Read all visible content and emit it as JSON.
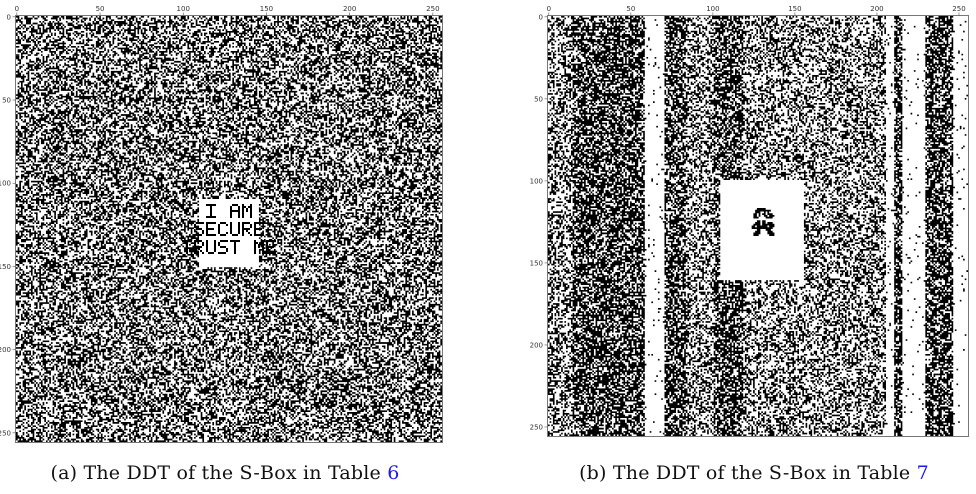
{
  "figure": {
    "panels": [
      {
        "caption_prefix": "(a) The DDT of the S-Box in Table ",
        "caption_ref": "6",
        "embedded_text": [
          "I AM",
          "SECURE",
          "TRUST ME"
        ]
      },
      {
        "caption_prefix": "(b) The DDT of the S-Box in Table ",
        "caption_ref": "7",
        "embedded_image": "mario-sprite"
      }
    ]
  },
  "chart_data": [
    {
      "type": "heatmap",
      "title": "",
      "xlabel": "",
      "ylabel": "",
      "xlim": [
        0,
        255
      ],
      "ylim": [
        0,
        255
      ],
      "x_ticks": [
        0,
        50,
        100,
        150,
        200,
        250
      ],
      "y_ticks": [
        0,
        50,
        100,
        150,
        200,
        250
      ],
      "y_inverted": true,
      "colors": {
        "nonzero": "#000000",
        "zero": "#ffffff"
      },
      "pattern": "uniform-random"
    },
    {
      "type": "heatmap",
      "title": "",
      "xlabel": "",
      "ylabel": "",
      "xlim": [
        0,
        255
      ],
      "ylim": [
        0,
        255
      ],
      "x_ticks": [
        0,
        50,
        100,
        150,
        200,
        250
      ],
      "y_ticks": [
        0,
        50,
        100,
        150,
        200,
        250
      ],
      "y_inverted": true,
      "colors": {
        "nonzero": "#000000",
        "zero": "#ffffff"
      },
      "pattern": "vertical-stripes",
      "blank_region_rows": [
        100,
        160
      ],
      "blank_region_cols": [
        105,
        155
      ]
    }
  ]
}
